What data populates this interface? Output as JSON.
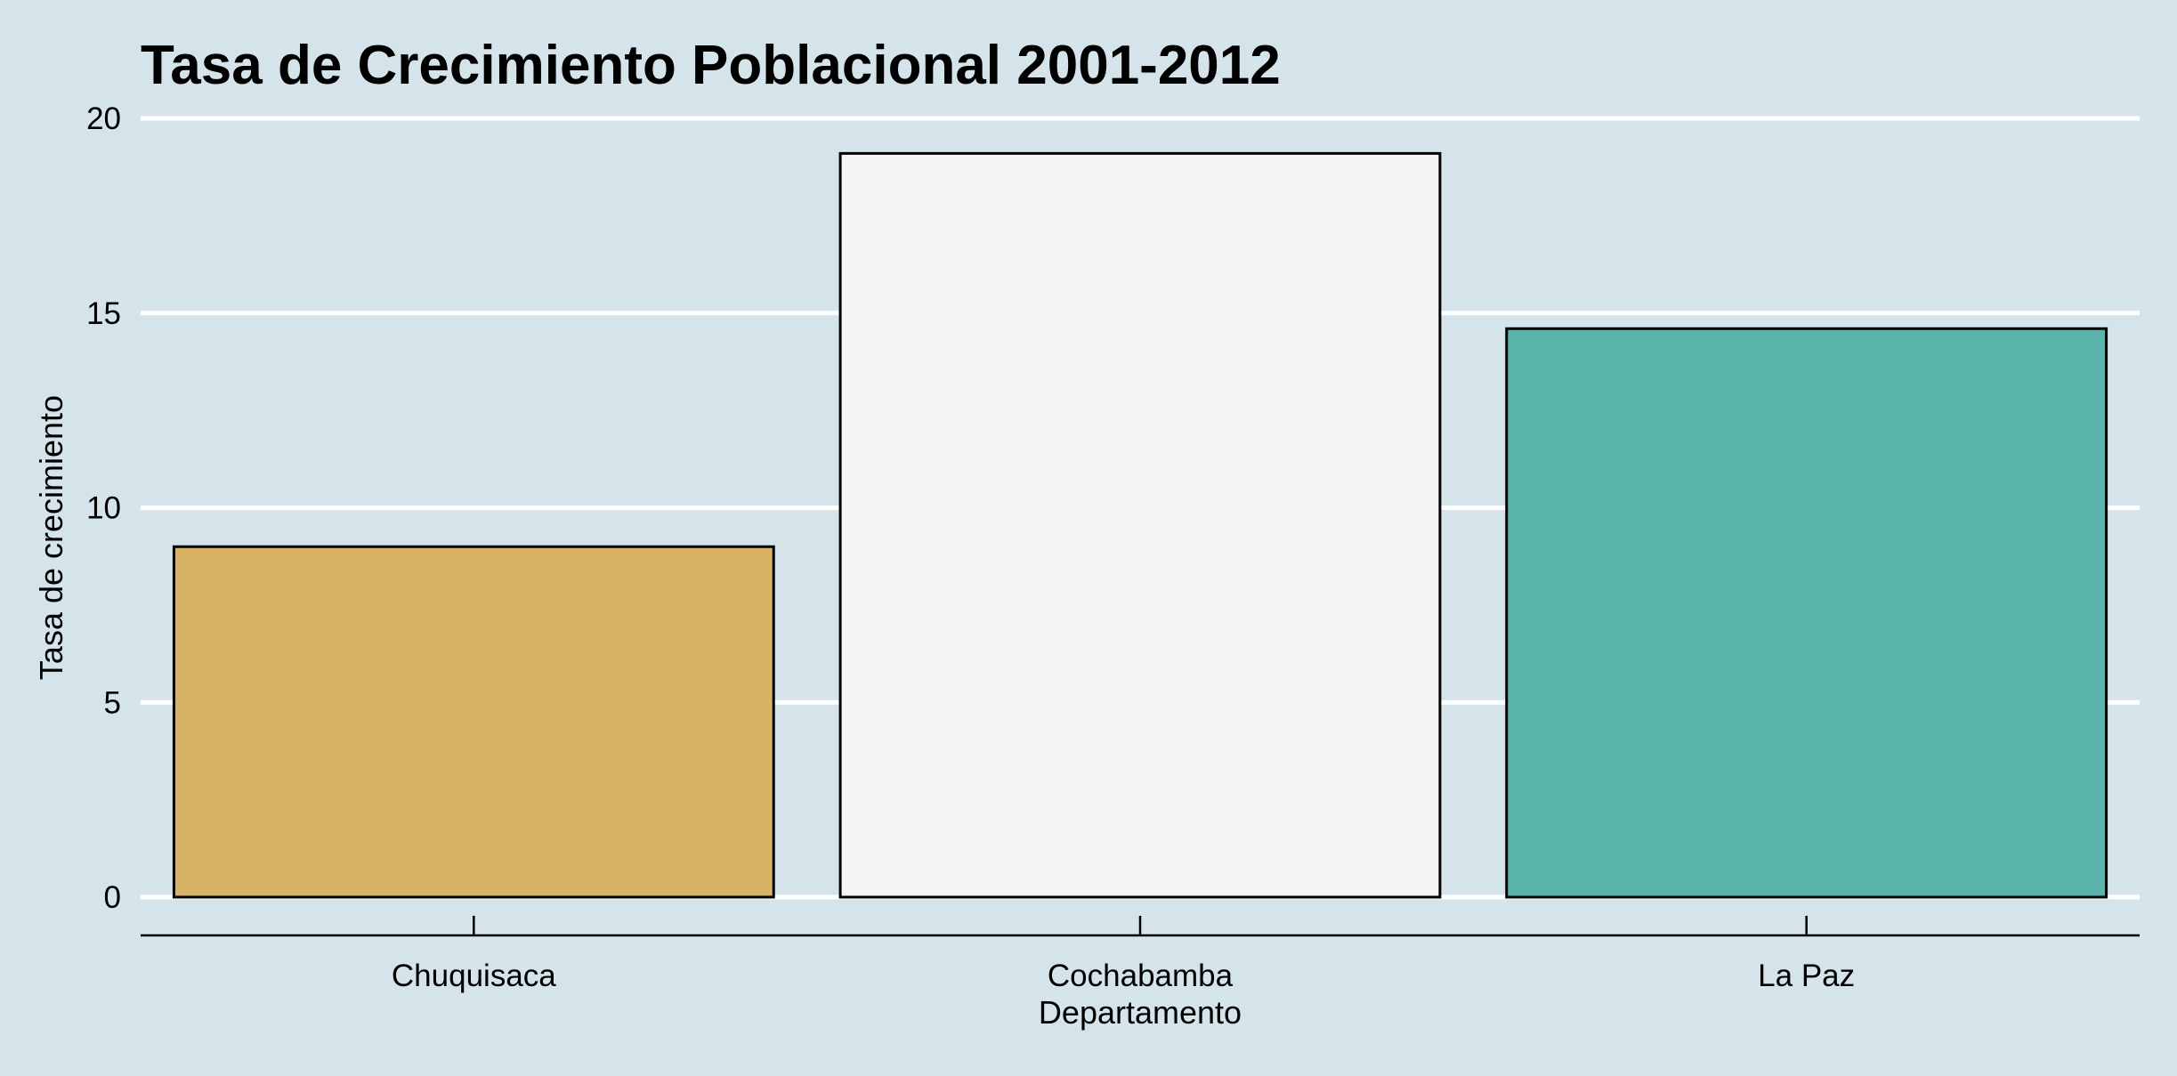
{
  "chart_data": {
    "type": "bar",
    "title": "Tasa de Crecimiento Poblacional 2001-2012",
    "xlabel": "Departamento",
    "ylabel": "Tasa de crecimiento",
    "categories": [
      "Chuquisaca",
      "Cochabamba",
      "La Paz"
    ],
    "values": [
      9.0,
      19.1,
      14.6
    ],
    "bar_colors": [
      "#d8b365",
      "#f5f5f5",
      "#5ab4ac"
    ],
    "bar_outline_color": "#000000",
    "ylim": [
      0,
      20
    ],
    "yticks": [
      0,
      5,
      10,
      15,
      20
    ],
    "grid": "horizontal",
    "background_color": "#d5e4eb",
    "gridline_color": "#ffffff",
    "legend": "none"
  }
}
